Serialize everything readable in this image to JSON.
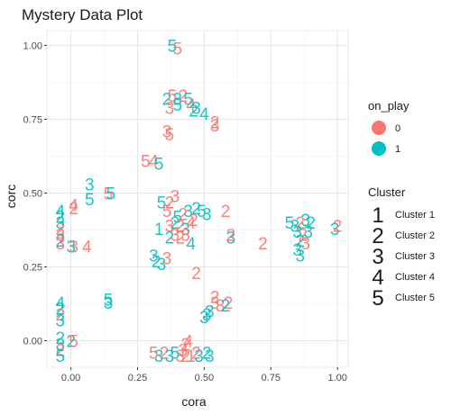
{
  "chart_data": {
    "type": "scatter",
    "title": "Mystery Data Plot",
    "xlabel": "cora",
    "ylabel": "corc",
    "xlim": [
      -0.09,
      1.04
    ],
    "ylim": [
      -0.09,
      1.05
    ],
    "xticks": [
      0,
      0.25,
      0.5,
      0.75,
      1
    ],
    "xtick_labels": [
      "0.00",
      "0.25",
      "0.50",
      "0.75",
      "1.00"
    ],
    "yticks": [
      0,
      0.25,
      0.5,
      0.75,
      1
    ],
    "ytick_labels": [
      "0.00",
      "0.25",
      "0.50",
      "0.75",
      "1.00"
    ],
    "grid": true,
    "colors": {
      "0": "#F8766D",
      "1": "#00BFC4"
    },
    "legend_position": "right",
    "legend_color": {
      "title": "on_play",
      "entries": [
        {
          "label": "0",
          "color": "#F8766D"
        },
        {
          "label": "1",
          "color": "#00BFC4"
        }
      ]
    },
    "legend_shape": {
      "title": "Cluster",
      "entries": [
        {
          "glyph": "1",
          "label": "Cluster 1"
        },
        {
          "glyph": "2",
          "label": "Cluster 2"
        },
        {
          "glyph": "3",
          "label": "Cluster 3"
        },
        {
          "glyph": "4",
          "label": "Cluster 4"
        },
        {
          "glyph": "5",
          "label": "Cluster 5"
        }
      ]
    },
    "points": [
      {
        "x": 0.38,
        "y": 1.0,
        "label": "5",
        "play": 1
      },
      {
        "x": 0.4,
        "y": 0.99,
        "label": "5",
        "play": 0
      },
      {
        "x": 0.36,
        "y": 0.82,
        "label": "2",
        "play": 1
      },
      {
        "x": 0.38,
        "y": 0.83,
        "label": "5",
        "play": 0
      },
      {
        "x": 0.4,
        "y": 0.82,
        "label": "3",
        "play": 1
      },
      {
        "x": 0.42,
        "y": 0.83,
        "label": "2",
        "play": 0
      },
      {
        "x": 0.44,
        "y": 0.82,
        "label": "5",
        "play": 1
      },
      {
        "x": 0.37,
        "y": 0.79,
        "label": "3",
        "play": 0
      },
      {
        "x": 0.4,
        "y": 0.8,
        "label": "5",
        "play": 1
      },
      {
        "x": 0.45,
        "y": 0.8,
        "label": "4",
        "play": 0
      },
      {
        "x": 0.47,
        "y": 0.79,
        "label": "3",
        "play": 1
      },
      {
        "x": 0.5,
        "y": 0.77,
        "label": "4",
        "play": 1
      },
      {
        "x": 0.46,
        "y": 0.78,
        "label": "2",
        "play": 1
      },
      {
        "x": 0.54,
        "y": 0.74,
        "label": "2",
        "play": 0
      },
      {
        "x": 0.54,
        "y": 0.73,
        "label": "3",
        "play": 0
      },
      {
        "x": 0.36,
        "y": 0.71,
        "label": "3",
        "play": 0
      },
      {
        "x": 0.37,
        "y": 0.7,
        "label": "5",
        "play": 0
      },
      {
        "x": 0.28,
        "y": 0.61,
        "label": "5",
        "play": 0
      },
      {
        "x": 0.31,
        "y": 0.61,
        "label": "4",
        "play": 0
      },
      {
        "x": 0.33,
        "y": 0.6,
        "label": "5",
        "play": 1
      },
      {
        "x": 0.07,
        "y": 0.53,
        "label": "3",
        "play": 1
      },
      {
        "x": 0.07,
        "y": 0.48,
        "label": "5",
        "play": 1
      },
      {
        "x": 0.14,
        "y": 0.5,
        "label": "5",
        "play": 0
      },
      {
        "x": 0.15,
        "y": 0.5,
        "label": "5",
        "play": 1
      },
      {
        "x": 0.01,
        "y": 0.46,
        "label": "4",
        "play": 0
      },
      {
        "x": 0.01,
        "y": 0.45,
        "label": "2",
        "play": 0
      },
      {
        "x": -0.04,
        "y": 0.44,
        "label": "4",
        "play": 1
      },
      {
        "x": -0.04,
        "y": 0.42,
        "label": "2",
        "play": 1
      },
      {
        "x": -0.04,
        "y": 0.4,
        "label": "3",
        "play": 1
      },
      {
        "x": -0.04,
        "y": 0.38,
        "label": "2",
        "play": 0
      },
      {
        "x": -0.04,
        "y": 0.36,
        "label": "3",
        "play": 0
      },
      {
        "x": -0.04,
        "y": 0.34,
        "label": "2",
        "play": 1
      },
      {
        "x": -0.04,
        "y": 0.33,
        "label": "3",
        "play": 0
      },
      {
        "x": 0.0,
        "y": 0.32,
        "label": "3",
        "play": 1
      },
      {
        "x": 0.01,
        "y": 0.32,
        "label": "3",
        "play": 0
      },
      {
        "x": 0.06,
        "y": 0.32,
        "label": "4",
        "play": 0
      },
      {
        "x": 0.34,
        "y": 0.47,
        "label": "5",
        "play": 1
      },
      {
        "x": 0.37,
        "y": 0.47,
        "label": "2",
        "play": 0
      },
      {
        "x": 0.39,
        "y": 0.49,
        "label": "3",
        "play": 0
      },
      {
        "x": 0.36,
        "y": 0.44,
        "label": "5",
        "play": 0
      },
      {
        "x": 0.4,
        "y": 0.42,
        "label": "5",
        "play": 1
      },
      {
        "x": 0.42,
        "y": 0.43,
        "label": "2",
        "play": 0
      },
      {
        "x": 0.44,
        "y": 0.44,
        "label": "3",
        "play": 1
      },
      {
        "x": 0.47,
        "y": 0.45,
        "label": "2",
        "play": 1
      },
      {
        "x": 0.49,
        "y": 0.44,
        "label": "5",
        "play": 1
      },
      {
        "x": 0.51,
        "y": 0.43,
        "label": "3",
        "play": 1
      },
      {
        "x": 0.33,
        "y": 0.38,
        "label": "1",
        "play": 1
      },
      {
        "x": 0.37,
        "y": 0.39,
        "label": "3",
        "play": 0
      },
      {
        "x": 0.39,
        "y": 0.4,
        "label": "2",
        "play": 1
      },
      {
        "x": 0.41,
        "y": 0.39,
        "label": "2",
        "play": 0
      },
      {
        "x": 0.43,
        "y": 0.38,
        "label": "3",
        "play": 1
      },
      {
        "x": 0.45,
        "y": 0.4,
        "label": "4",
        "play": 0
      },
      {
        "x": 0.46,
        "y": 0.41,
        "label": "2",
        "play": 0
      },
      {
        "x": 0.39,
        "y": 0.36,
        "label": "3",
        "play": 0
      },
      {
        "x": 0.41,
        "y": 0.35,
        "label": "2",
        "play": 0
      },
      {
        "x": 0.43,
        "y": 0.36,
        "label": "3",
        "play": 0
      },
      {
        "x": 0.37,
        "y": 0.35,
        "label": "2",
        "play": 1
      },
      {
        "x": 0.45,
        "y": 0.33,
        "label": "4",
        "play": 1
      },
      {
        "x": 0.58,
        "y": 0.44,
        "label": "2",
        "play": 0
      },
      {
        "x": 0.6,
        "y": 0.35,
        "label": "3",
        "play": 1
      },
      {
        "x": 0.6,
        "y": 0.36,
        "label": "2",
        "play": 0
      },
      {
        "x": 0.72,
        "y": 0.33,
        "label": "2",
        "play": 0
      },
      {
        "x": 0.82,
        "y": 0.4,
        "label": "5",
        "play": 1
      },
      {
        "x": 0.84,
        "y": 0.39,
        "label": "3",
        "play": 1
      },
      {
        "x": 0.86,
        "y": 0.4,
        "label": "2",
        "play": 0
      },
      {
        "x": 0.88,
        "y": 0.41,
        "label": "3",
        "play": 1
      },
      {
        "x": 0.9,
        "y": 0.4,
        "label": "2",
        "play": 1
      },
      {
        "x": 0.85,
        "y": 0.37,
        "label": "3",
        "play": 1
      },
      {
        "x": 0.87,
        "y": 0.36,
        "label": "2",
        "play": 0
      },
      {
        "x": 0.89,
        "y": 0.37,
        "label": "3",
        "play": 1
      },
      {
        "x": 0.86,
        "y": 0.34,
        "label": "2",
        "play": 1
      },
      {
        "x": 0.88,
        "y": 0.33,
        "label": "3",
        "play": 0
      },
      {
        "x": 0.85,
        "y": 0.31,
        "label": "3",
        "play": 1
      },
      {
        "x": 0.86,
        "y": 0.29,
        "label": "3",
        "play": 1
      },
      {
        "x": 0.99,
        "y": 0.38,
        "label": "3",
        "play": 1
      },
      {
        "x": 1.0,
        "y": 0.39,
        "label": "2",
        "play": 0
      },
      {
        "x": 0.31,
        "y": 0.29,
        "label": "3",
        "play": 1
      },
      {
        "x": 0.32,
        "y": 0.27,
        "label": "2",
        "play": 1
      },
      {
        "x": 0.34,
        "y": 0.26,
        "label": "3",
        "play": 1
      },
      {
        "x": 0.36,
        "y": 0.28,
        "label": "3",
        "play": 0
      },
      {
        "x": 0.47,
        "y": 0.23,
        "label": "2",
        "play": 0
      },
      {
        "x": 0.54,
        "y": 0.15,
        "label": "2",
        "play": 0
      },
      {
        "x": 0.54,
        "y": 0.13,
        "label": "3",
        "play": 0
      },
      {
        "x": 0.56,
        "y": 0.12,
        "label": "3",
        "play": 0
      },
      {
        "x": 0.52,
        "y": 0.1,
        "label": "3",
        "play": 1
      },
      {
        "x": 0.59,
        "y": 0.13,
        "label": "2",
        "play": 0
      },
      {
        "x": 0.58,
        "y": 0.12,
        "label": "2",
        "play": 1
      },
      {
        "x": 0.51,
        "y": 0.09,
        "label": "3",
        "play": 1
      },
      {
        "x": 0.5,
        "y": 0.08,
        "label": "3",
        "play": 1
      },
      {
        "x": 0.14,
        "y": 0.14,
        "label": "5",
        "play": 1
      },
      {
        "x": 0.14,
        "y": 0.13,
        "label": "3",
        "play": 1
      },
      {
        "x": -0.04,
        "y": 0.13,
        "label": "4",
        "play": 1
      },
      {
        "x": -0.04,
        "y": 0.11,
        "label": "2",
        "play": 1
      },
      {
        "x": -0.04,
        "y": 0.09,
        "label": "2",
        "play": 0
      },
      {
        "x": -0.04,
        "y": 0.07,
        "label": "3",
        "play": 1
      },
      {
        "x": -0.04,
        "y": 0.01,
        "label": "2",
        "play": 1
      },
      {
        "x": -0.04,
        "y": -0.01,
        "label": "3",
        "play": 1
      },
      {
        "x": 0.0,
        "y": 0.0,
        "label": "2",
        "play": 1
      },
      {
        "x": 0.01,
        "y": 0.0,
        "label": "5",
        "play": 0
      },
      {
        "x": -0.04,
        "y": -0.03,
        "label": "2",
        "play": 0
      },
      {
        "x": -0.04,
        "y": -0.05,
        "label": "5",
        "play": 1
      },
      {
        "x": 0.31,
        "y": -0.04,
        "label": "5",
        "play": 0
      },
      {
        "x": 0.33,
        "y": -0.05,
        "label": "3",
        "play": 1
      },
      {
        "x": 0.35,
        "y": -0.04,
        "label": "2",
        "play": 0
      },
      {
        "x": 0.37,
        "y": -0.05,
        "label": "3",
        "play": 1
      },
      {
        "x": 0.39,
        "y": -0.04,
        "label": "5",
        "play": 1
      },
      {
        "x": 0.41,
        "y": -0.05,
        "label": "3",
        "play": 0
      },
      {
        "x": 0.43,
        "y": -0.05,
        "label": "2",
        "play": 0
      },
      {
        "x": 0.44,
        "y": 0.0,
        "label": "4",
        "play": 0
      },
      {
        "x": 0.43,
        "y": -0.01,
        "label": "2",
        "play": 0
      },
      {
        "x": 0.42,
        "y": -0.03,
        "label": "3",
        "play": 0
      },
      {
        "x": 0.45,
        "y": -0.05,
        "label": "1",
        "play": 0
      },
      {
        "x": 0.47,
        "y": -0.04,
        "label": "2",
        "play": 0
      },
      {
        "x": 0.48,
        "y": -0.05,
        "label": "3",
        "play": 1
      },
      {
        "x": 0.51,
        "y": -0.04,
        "label": "2",
        "play": 1
      },
      {
        "x": 0.52,
        "y": -0.05,
        "label": "3",
        "play": 1
      }
    ]
  }
}
